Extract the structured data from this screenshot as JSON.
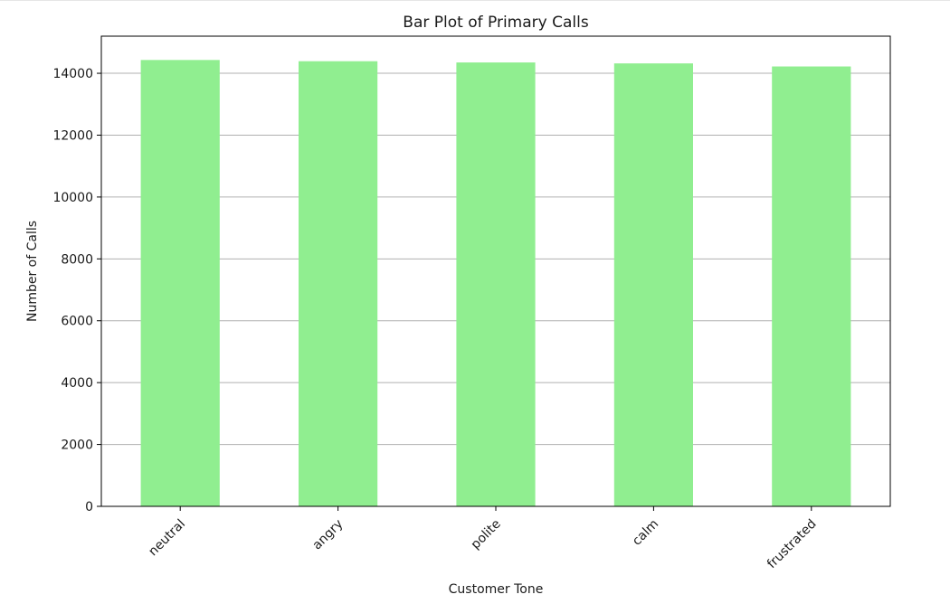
{
  "chart_data": {
    "type": "bar",
    "title": "Bar Plot of Primary Calls",
    "xlabel": "Customer Tone",
    "ylabel": "Number of Calls",
    "categories": [
      "neutral",
      "angry",
      "polite",
      "calm",
      "frustrated"
    ],
    "values": [
      14430,
      14390,
      14350,
      14320,
      14220
    ],
    "ylim": [
      0,
      15200
    ],
    "yticks": [
      0,
      2000,
      4000,
      6000,
      8000,
      10000,
      12000,
      14000
    ],
    "ytick_labels": [
      "0",
      "2000",
      "4000",
      "6000",
      "8000",
      "10000",
      "12000",
      "14000"
    ],
    "grid": "y",
    "legend": "none",
    "bar_color": "#90ee90",
    "grid_color": "#b0b0b0",
    "axis_color": "#000000"
  }
}
